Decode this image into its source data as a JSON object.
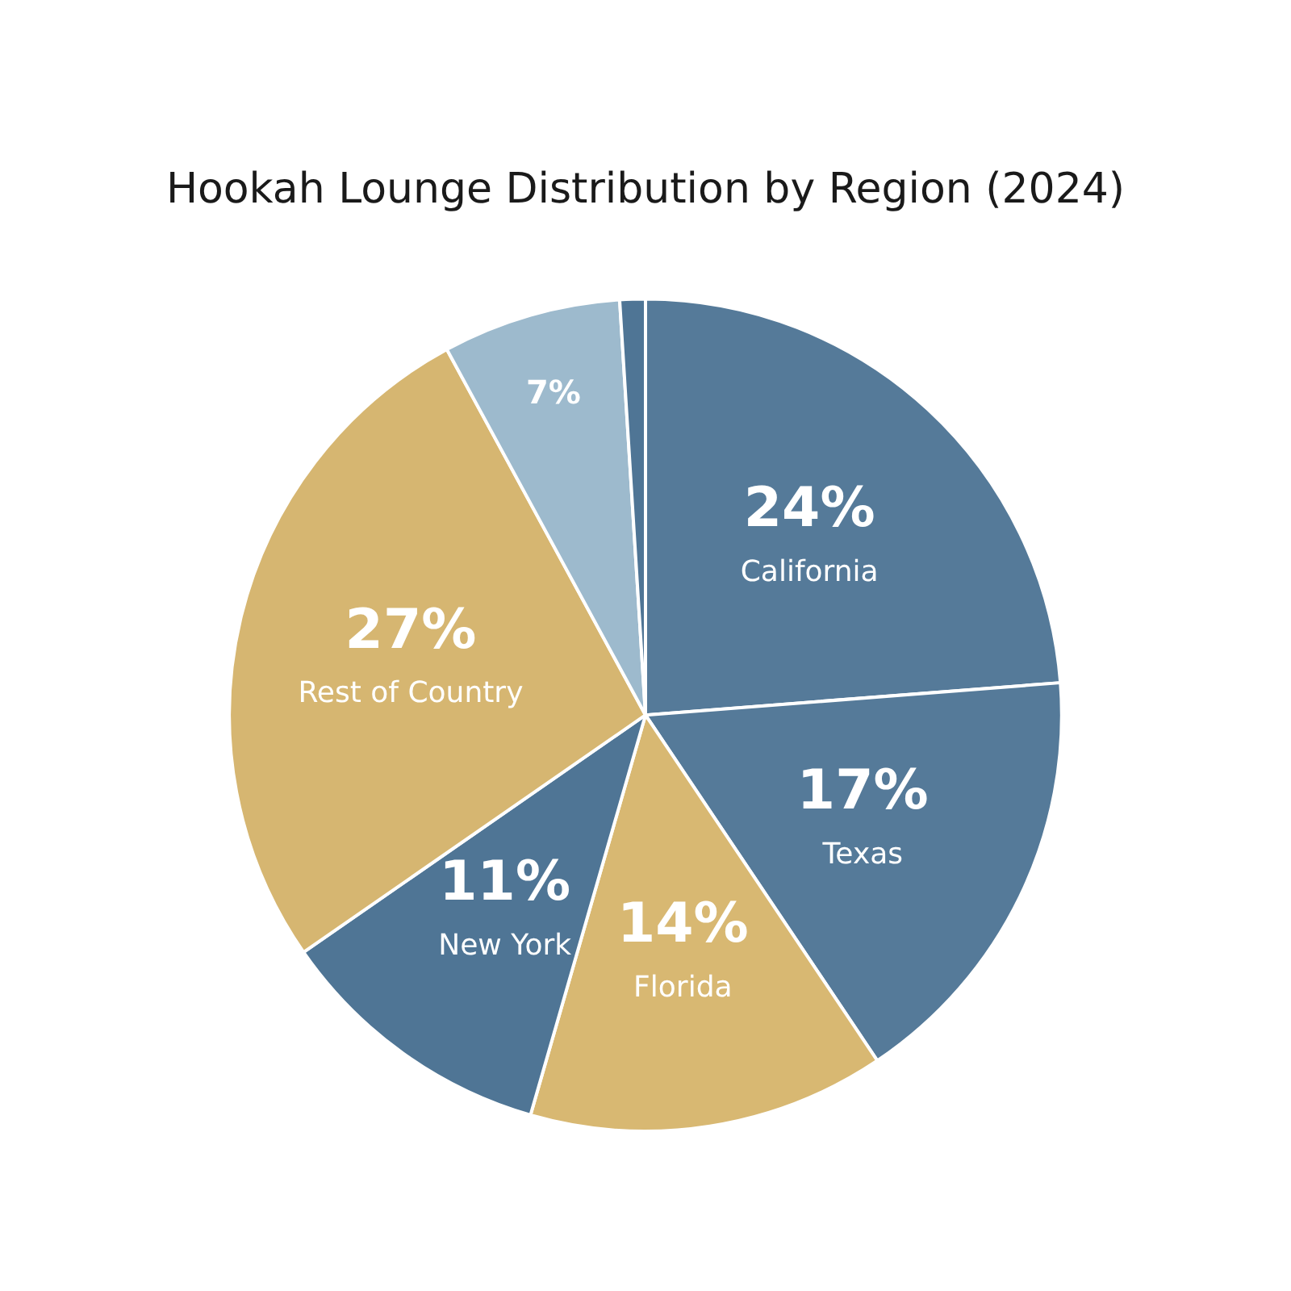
{
  "chart_data": {
    "type": "pie",
    "title": "Hookah Lounge Distribution by Region (2024)",
    "categories": [
      "California",
      "Texas",
      "Florida",
      "New York",
      "Rest of Country",
      null,
      null
    ],
    "values": [
      24,
      17,
      14,
      11,
      27,
      7,
      1
    ],
    "colors": [
      "#557a99",
      "#557a99",
      "#d8b872",
      "#4f7595",
      "#d6b671",
      "#9dbacd",
      "#4f7595"
    ],
    "value_labels": [
      "24%",
      "17%",
      "14%",
      "11%",
      "27%",
      "7%",
      null
    ],
    "legend": false
  }
}
